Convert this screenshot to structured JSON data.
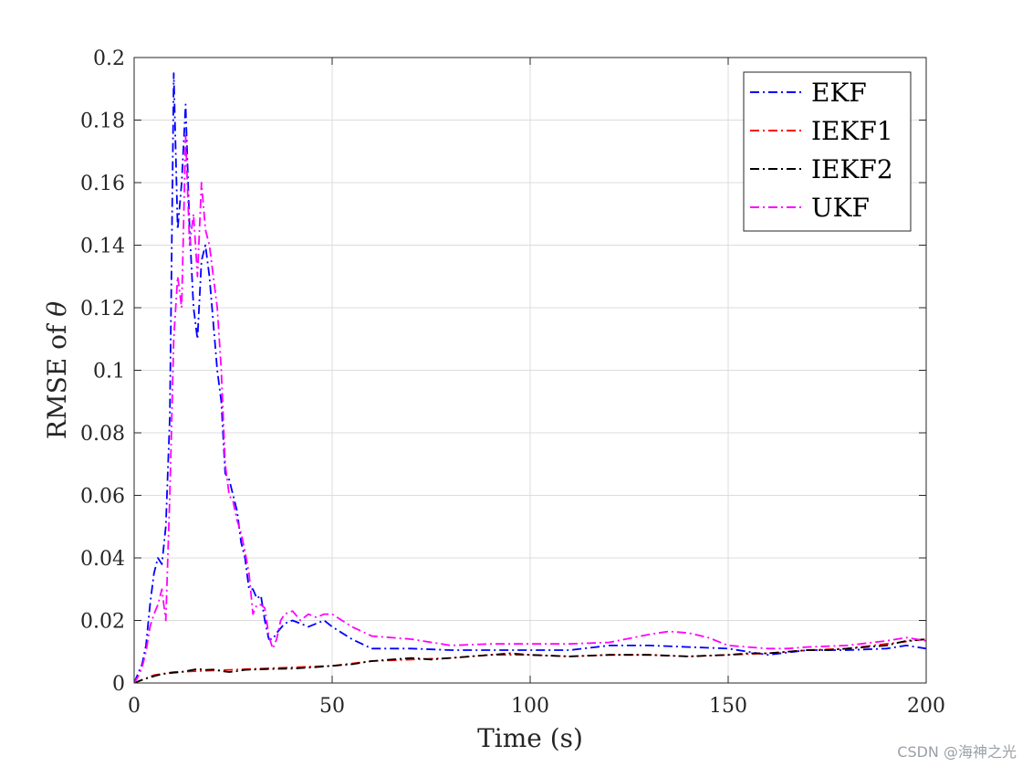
{
  "chart_data": {
    "type": "line",
    "title": "",
    "xlabel": "Time (s)",
    "ylabel_prefix": "RMSE of ",
    "ylabel_symbol": "θ",
    "xlim": [
      0,
      200
    ],
    "ylim": [
      0,
      0.2
    ],
    "xticks": [
      0,
      50,
      100,
      150,
      200
    ],
    "xtick_labels": [
      "0",
      "50",
      "100",
      "150",
      "200"
    ],
    "yticks": [
      0,
      0.02,
      0.04,
      0.06,
      0.08,
      0.1,
      0.12,
      0.14,
      0.16,
      0.18,
      0.2
    ],
    "ytick_labels": [
      "0",
      "0.02",
      "0.04",
      "0.06",
      "0.08",
      "0.1",
      "0.12",
      "0.14",
      "0.16",
      "0.18",
      "0.2"
    ],
    "grid": true,
    "legend_position": "top-right",
    "series": [
      {
        "name": "EKF",
        "color": "#0000ff",
        "dash": "dashdot",
        "x": [
          0,
          1,
          2,
          3,
          4,
          5,
          6,
          7,
          8,
          9,
          10,
          11,
          12,
          13,
          14,
          15,
          16,
          17,
          18,
          19,
          20,
          21,
          22,
          23,
          24,
          25,
          26,
          27,
          28,
          29,
          30,
          31,
          32,
          33,
          34,
          35,
          36,
          38,
          40,
          42,
          44,
          46,
          48,
          50,
          55,
          60,
          70,
          80,
          90,
          100,
          110,
          120,
          130,
          140,
          150,
          160,
          170,
          180,
          190,
          195,
          200
        ],
        "y": [
          0,
          0.003,
          0.006,
          0.012,
          0.025,
          0.035,
          0.04,
          0.038,
          0.05,
          0.085,
          0.195,
          0.145,
          0.16,
          0.185,
          0.145,
          0.12,
          0.11,
          0.135,
          0.14,
          0.13,
          0.115,
          0.1,
          0.09,
          0.067,
          0.065,
          0.06,
          0.055,
          0.045,
          0.04,
          0.03,
          0.03,
          0.027,
          0.028,
          0.02,
          0.014,
          0.014,
          0.016,
          0.019,
          0.02,
          0.019,
          0.018,
          0.019,
          0.02,
          0.018,
          0.014,
          0.011,
          0.011,
          0.0105,
          0.0105,
          0.0105,
          0.0105,
          0.012,
          0.012,
          0.0115,
          0.011,
          0.009,
          0.0105,
          0.0105,
          0.011,
          0.012,
          0.011
        ]
      },
      {
        "name": "IEKF1",
        "color": "#ff0000",
        "dash": "dashdot",
        "x": [
          0,
          5,
          10,
          20,
          30,
          40,
          50,
          60,
          70,
          80,
          90,
          100,
          110,
          120,
          130,
          140,
          150,
          160,
          170,
          180,
          190,
          200
        ],
        "y": [
          0,
          0.0025,
          0.0035,
          0.004,
          0.0045,
          0.005,
          0.0055,
          0.007,
          0.0075,
          0.008,
          0.009,
          0.009,
          0.0085,
          0.009,
          0.009,
          0.0085,
          0.009,
          0.0095,
          0.0105,
          0.011,
          0.0125,
          0.014
        ]
      },
      {
        "name": "IEKF2",
        "color": "#000000",
        "dash": "dashdot",
        "x": [
          0,
          2,
          4,
          6,
          8,
          10,
          12,
          14,
          16,
          18,
          20,
          22,
          24,
          26,
          28,
          30,
          35,
          40,
          45,
          50,
          55,
          60,
          65,
          70,
          75,
          80,
          85,
          90,
          95,
          100,
          110,
          120,
          130,
          140,
          150,
          155,
          160,
          165,
          170,
          175,
          180,
          190,
          195,
          200
        ],
        "y": [
          0,
          0.001,
          0.0018,
          0.0025,
          0.003,
          0.0033,
          0.0035,
          0.004,
          0.0045,
          0.0042,
          0.0043,
          0.0038,
          0.0035,
          0.0038,
          0.0042,
          0.0043,
          0.0045,
          0.0046,
          0.005,
          0.0055,
          0.006,
          0.007,
          0.0075,
          0.008,
          0.0075,
          0.008,
          0.0085,
          0.009,
          0.0095,
          0.009,
          0.0085,
          0.009,
          0.009,
          0.0085,
          0.009,
          0.0095,
          0.0095,
          0.01,
          0.0105,
          0.0105,
          0.011,
          0.012,
          0.0135,
          0.014
        ]
      },
      {
        "name": "UKF",
        "color": "#ff00ff",
        "dash": "dashdot",
        "x": [
          0,
          1,
          2,
          3,
          4,
          5,
          6,
          7,
          8,
          9,
          10,
          11,
          12,
          13,
          14,
          15,
          16,
          17,
          18,
          19,
          20,
          21,
          22,
          23,
          24,
          25,
          26,
          27,
          28,
          29,
          30,
          31,
          32,
          33,
          34,
          35,
          36,
          37,
          38,
          40,
          42,
          44,
          46,
          48,
          50,
          55,
          60,
          70,
          80,
          90,
          100,
          110,
          120,
          130,
          135,
          140,
          145,
          150,
          155,
          160,
          165,
          170,
          180,
          190,
          195,
          200
        ],
        "y": [
          0,
          0.002,
          0.005,
          0.01,
          0.018,
          0.022,
          0.025,
          0.03,
          0.02,
          0.06,
          0.11,
          0.13,
          0.12,
          0.175,
          0.14,
          0.15,
          0.13,
          0.16,
          0.145,
          0.14,
          0.13,
          0.12,
          0.1,
          0.07,
          0.06,
          0.058,
          0.052,
          0.048,
          0.042,
          0.035,
          0.022,
          0.025,
          0.025,
          0.024,
          0.015,
          0.011,
          0.014,
          0.02,
          0.022,
          0.023,
          0.02,
          0.022,
          0.021,
          0.022,
          0.022,
          0.018,
          0.015,
          0.014,
          0.012,
          0.0125,
          0.0125,
          0.0125,
          0.013,
          0.0155,
          0.0165,
          0.016,
          0.0145,
          0.012,
          0.0115,
          0.011,
          0.011,
          0.0115,
          0.012,
          0.0135,
          0.0145,
          0.0135
        ]
      }
    ]
  },
  "watermark": "CSDN @海神之光"
}
